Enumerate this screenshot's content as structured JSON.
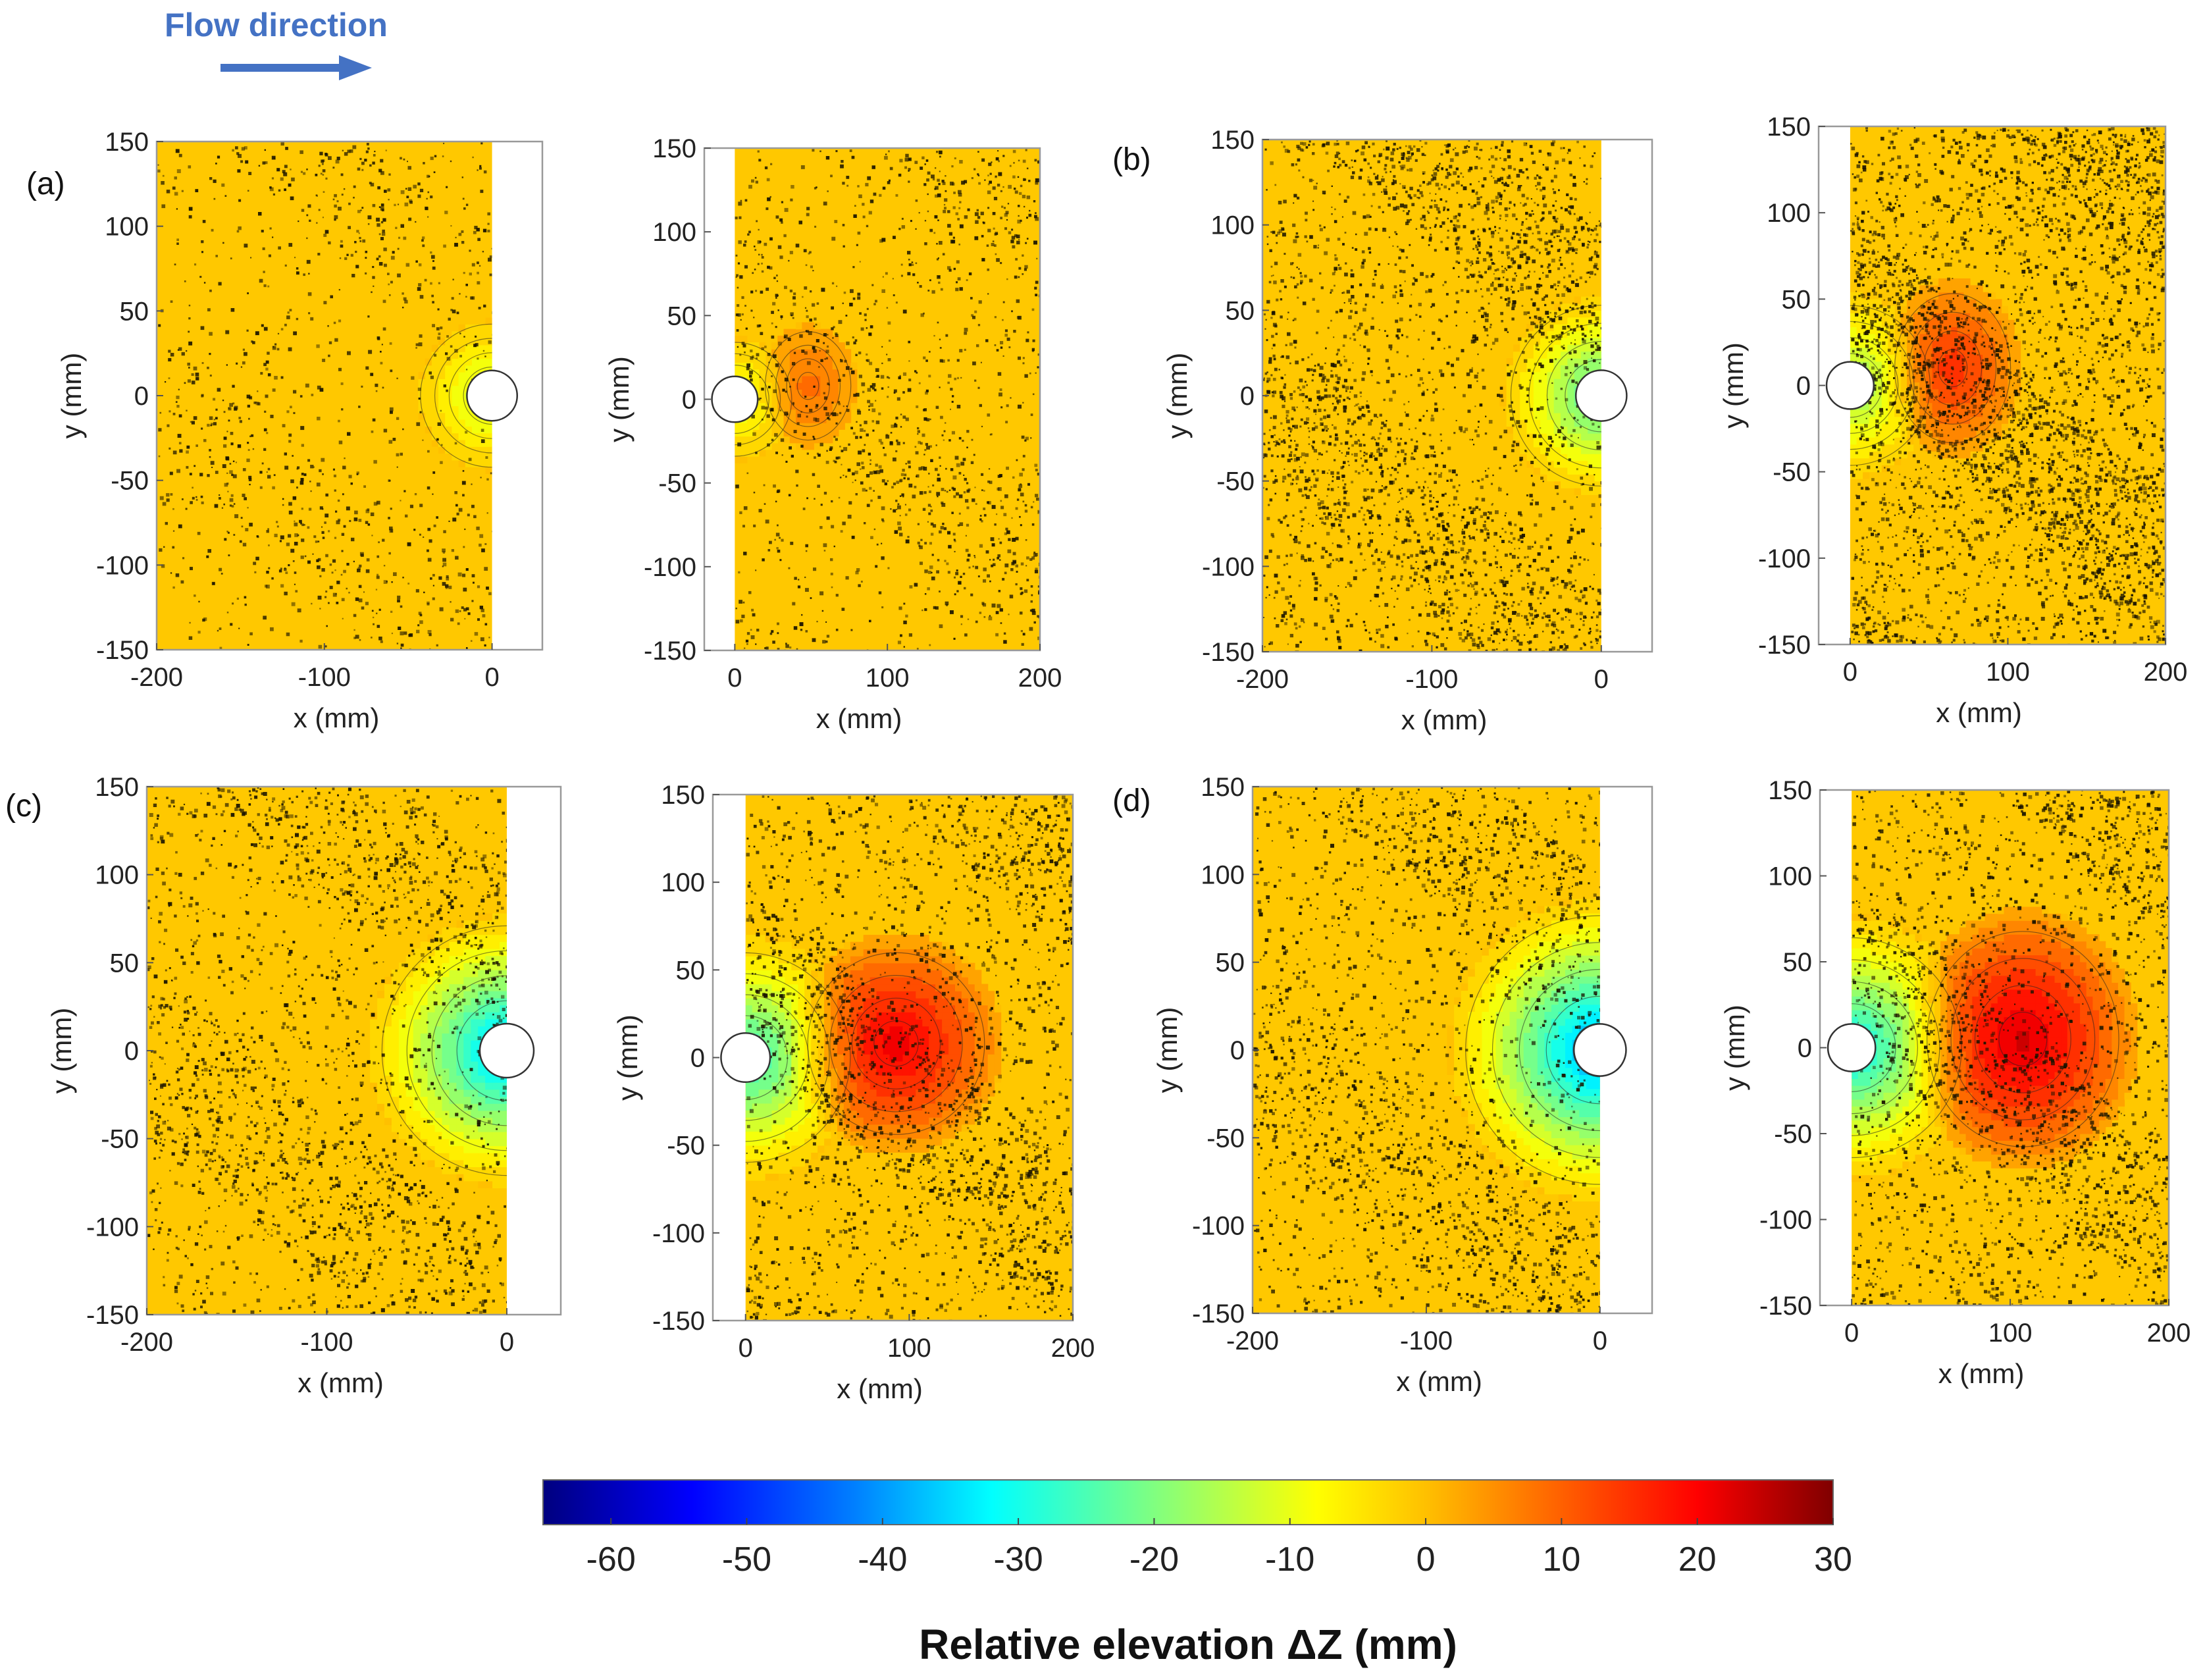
{
  "flow_label": "Flow direction",
  "colors": {
    "background_field": "#ffc800",
    "frame": "#999999",
    "pier": "#ffffff",
    "arrow": "#4472c4",
    "speckle": "#1a1400"
  },
  "colorbar": {
    "title": "Relative elevation ΔZ (mm)",
    "range": [
      -65,
      30
    ],
    "ticks": [
      -60,
      -50,
      -40,
      -30,
      -20,
      -10,
      0,
      10,
      20,
      30
    ],
    "tick_labels": [
      "-60",
      "-50",
      "-40",
      "-30",
      "-20",
      "-10",
      "0",
      "10",
      "20",
      "30"
    ],
    "stops": [
      {
        "v": -65,
        "c": "#00007f"
      },
      {
        "v": -54,
        "c": "#0000ff"
      },
      {
        "v": -42,
        "c": "#0080ff"
      },
      {
        "v": -32,
        "c": "#00ffff"
      },
      {
        "v": -20,
        "c": "#80ff80"
      },
      {
        "v": -8,
        "c": "#ffff00"
      },
      {
        "v": 0,
        "c": "#ffc000"
      },
      {
        "v": 10,
        "c": "#ff6000"
      },
      {
        "v": 20,
        "c": "#ff0000"
      },
      {
        "v": 30,
        "c": "#7f0000"
      }
    ]
  },
  "chart_data": [
    {
      "type": "heatmap",
      "panel": "a",
      "label": "(a)",
      "side": "upstream",
      "x_range": [
        -200,
        30
      ],
      "data_x_max": 0,
      "y_range": [
        -150,
        150
      ],
      "xticks": [
        -200,
        -100,
        0
      ],
      "xtick_labels": [
        "-200",
        "-100",
        "0"
      ],
      "yticks": [
        -150,
        -100,
        -50,
        0,
        50,
        100,
        150
      ],
      "ytick_labels": [
        "-150",
        "-100",
        "-50",
        "0",
        "50",
        "100",
        "150"
      ],
      "xlabel": "x (mm)",
      "ylabel": "y (mm)",
      "pier": {
        "x": 0,
        "y": 0,
        "r": 15
      },
      "features": [
        {
          "kind": "scour",
          "cx": 0,
          "cy": 0,
          "r": 32,
          "min": -16
        }
      ],
      "noise": 0.06
    },
    {
      "type": "heatmap",
      "panel": "a",
      "label": "",
      "side": "downstream",
      "x_range": [
        -20,
        200
      ],
      "data_x_min": 0,
      "y_range": [
        -150,
        150
      ],
      "xticks": [
        0,
        100,
        200
      ],
      "xtick_labels": [
        "0",
        "100",
        "200"
      ],
      "yticks": [
        -150,
        -100,
        -50,
        0,
        50,
        100,
        150
      ],
      "ytick_labels": [
        "-150",
        "-100",
        "-50",
        "0",
        "50",
        "100",
        "150"
      ],
      "xlabel": "x (mm)",
      "ylabel": "y (mm)",
      "pier": {
        "x": 0,
        "y": 0,
        "r": 15
      },
      "features": [
        {
          "kind": "scour",
          "cx": 0,
          "cy": 0,
          "r": 28,
          "min": -12
        },
        {
          "kind": "deposit",
          "cx": 48,
          "cy": 8,
          "rx": 26,
          "ry": 30,
          "max": 9
        }
      ],
      "noise": 0.08
    },
    {
      "type": "heatmap",
      "panel": "b",
      "label": "(b)",
      "side": "upstream",
      "x_range": [
        -200,
        30
      ],
      "data_x_max": 0,
      "y_range": [
        -150,
        150
      ],
      "xticks": [
        -200,
        -100,
        0
      ],
      "xtick_labels": [
        "-200",
        "-100",
        "0"
      ],
      "yticks": [
        -150,
        -100,
        -50,
        0,
        50,
        100,
        150
      ],
      "ytick_labels": [
        "-150",
        "-100",
        "-50",
        "0",
        "50",
        "100",
        "150"
      ],
      "xlabel": "x (mm)",
      "ylabel": "y (mm)",
      "pier": {
        "x": 0,
        "y": 0,
        "r": 15
      },
      "features": [
        {
          "kind": "scour",
          "cx": 0,
          "cy": 0,
          "r": 40,
          "min": -28
        }
      ],
      "noise": 0.16
    },
    {
      "type": "heatmap",
      "panel": "b",
      "label": "",
      "side": "downstream",
      "x_range": [
        -20,
        200
      ],
      "data_x_min": 0,
      "y_range": [
        -150,
        150
      ],
      "xticks": [
        0,
        100,
        200
      ],
      "xtick_labels": [
        "0",
        "100",
        "200"
      ],
      "yticks": [
        -150,
        -100,
        -50,
        0,
        50,
        100,
        150
      ],
      "ytick_labels": [
        "-150",
        "-100",
        "-50",
        "0",
        "50",
        "100",
        "150"
      ],
      "xlabel": "x (mm)",
      "ylabel": "y (mm)",
      "pier": {
        "x": 0,
        "y": 0,
        "r": 15
      },
      "features": [
        {
          "kind": "scour",
          "cx": 0,
          "cy": 0,
          "r": 38,
          "min": -20
        },
        {
          "kind": "deposit",
          "cx": 65,
          "cy": 10,
          "rx": 34,
          "ry": 40,
          "max": 16
        }
      ],
      "noise": 0.22
    },
    {
      "type": "heatmap",
      "panel": "c",
      "label": "(c)",
      "side": "upstream",
      "x_range": [
        -200,
        30
      ],
      "data_x_max": 0,
      "y_range": [
        -150,
        150
      ],
      "xticks": [
        -200,
        -100,
        0
      ],
      "xtick_labels": [
        "-200",
        "-100",
        "0"
      ],
      "yticks": [
        -150,
        -100,
        -50,
        0,
        50,
        100,
        150
      ],
      "ytick_labels": [
        "-150",
        "-100",
        "-50",
        "0",
        "50",
        "100",
        "150"
      ],
      "xlabel": "x (mm)",
      "ylabel": "y (mm)",
      "pier": {
        "x": 0,
        "y": 0,
        "r": 15
      },
      "features": [
        {
          "kind": "scour",
          "cx": 0,
          "cy": 0,
          "r": 52,
          "min": -40
        }
      ],
      "noise": 0.12
    },
    {
      "type": "heatmap",
      "panel": "c",
      "label": "",
      "side": "downstream",
      "x_range": [
        -20,
        200
      ],
      "data_x_min": 0,
      "y_range": [
        -150,
        150
      ],
      "xticks": [
        0,
        100,
        200
      ],
      "xtick_labels": [
        "0",
        "100",
        "200"
      ],
      "yticks": [
        -150,
        -100,
        -50,
        0,
        50,
        100,
        150
      ],
      "ytick_labels": [
        "-150",
        "-100",
        "-50",
        "0",
        "50",
        "100",
        "150"
      ],
      "xlabel": "x (mm)",
      "ylabel": "y (mm)",
      "pier": {
        "x": 0,
        "y": 0,
        "r": 15
      },
      "features": [
        {
          "kind": "scour",
          "cx": 0,
          "cy": 0,
          "r": 48,
          "min": -30
        },
        {
          "kind": "deposit",
          "cx": 92,
          "cy": 8,
          "rx": 50,
          "ry": 48,
          "max": 22
        }
      ],
      "noise": 0.14
    },
    {
      "type": "heatmap",
      "panel": "d",
      "label": "(d)",
      "side": "upstream",
      "x_range": [
        -200,
        30
      ],
      "data_x_max": 0,
      "y_range": [
        -150,
        150
      ],
      "xticks": [
        -200,
        -100,
        0
      ],
      "xtick_labels": [
        "-200",
        "-100",
        "0"
      ],
      "yticks": [
        -150,
        -100,
        -50,
        0,
        50,
        100,
        150
      ],
      "ytick_labels": [
        "-150",
        "-100",
        "-50",
        "0",
        "50",
        "100",
        "150"
      ],
      "xlabel": "x (mm)",
      "ylabel": "y (mm)",
      "pier": {
        "x": 0,
        "y": 0,
        "r": 15
      },
      "features": [
        {
          "kind": "scour",
          "cx": 0,
          "cy": 0,
          "r": 58,
          "min": -44
        }
      ],
      "noise": 0.12
    },
    {
      "type": "heatmap",
      "panel": "d",
      "label": "",
      "side": "downstream",
      "x_range": [
        -20,
        200
      ],
      "data_x_min": 0,
      "y_range": [
        -150,
        150
      ],
      "xticks": [
        0,
        100,
        200
      ],
      "xtick_labels": [
        "0",
        "100",
        "200"
      ],
      "yticks": [
        -150,
        -100,
        -50,
        0,
        50,
        100,
        150
      ],
      "ytick_labels": [
        "-150",
        "-100",
        "-50",
        "0",
        "50",
        "100",
        "150"
      ],
      "xlabel": "x (mm)",
      "ylabel": "y (mm)",
      "pier": {
        "x": 0,
        "y": 0,
        "r": 15
      },
      "features": [
        {
          "kind": "scour",
          "cx": 0,
          "cy": 0,
          "r": 52,
          "min": -34
        },
        {
          "kind": "deposit",
          "cx": 108,
          "cy": 5,
          "rx": 56,
          "ry": 58,
          "max": 24
        }
      ],
      "noise": 0.14
    }
  ]
}
